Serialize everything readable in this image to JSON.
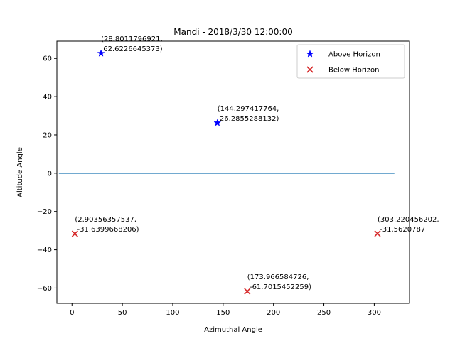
{
  "chart_data": {
    "type": "scatter",
    "title": "Mandi - 2018/3/30 12:00:00",
    "xlabel": "Azimuthal Angle",
    "ylabel": "Altitude Angle",
    "xlim": [
      -15,
      335
    ],
    "ylim": [
      -68,
      69
    ],
    "xticks": [
      0,
      50,
      100,
      150,
      200,
      250,
      300
    ],
    "yticks": [
      -60,
      -40,
      -20,
      0,
      20,
      40,
      60
    ],
    "grid": false,
    "legend_position": "upper right",
    "horizon_line": {
      "x": [
        -13,
        320
      ],
      "y": [
        0,
        0
      ],
      "color": "#1f77b4"
    },
    "series": [
      {
        "name": "Above Horizon",
        "marker": "star",
        "color": "#0000ff",
        "points": [
          {
            "x": 28.8011796921,
            "y": 62.6226645373,
            "label_line1": "(28.8011796921,",
            "label_line2": " 62.6226645373)"
          },
          {
            "x": 144.297417764,
            "y": 26.2855288132,
            "label_line1": "(144.297417764,",
            "label_line2": " 26.2855288132)"
          }
        ]
      },
      {
        "name": "Below Horizon",
        "marker": "x",
        "color": "#d62728",
        "points": [
          {
            "x": 2.90356357537,
            "y": -31.6399668206,
            "label_line1": "(2.90356357537,",
            "label_line2": " -31.6399668206)"
          },
          {
            "x": 173.966584726,
            "y": -61.7015452259,
            "label_line1": "(173.966584726,",
            "label_line2": " -61.7015452259)"
          },
          {
            "x": 303.220456202,
            "y": -31.5620787,
            "label_line1": "(303.220456202,",
            "label_line2": " -31.5620787"
          }
        ]
      }
    ]
  }
}
